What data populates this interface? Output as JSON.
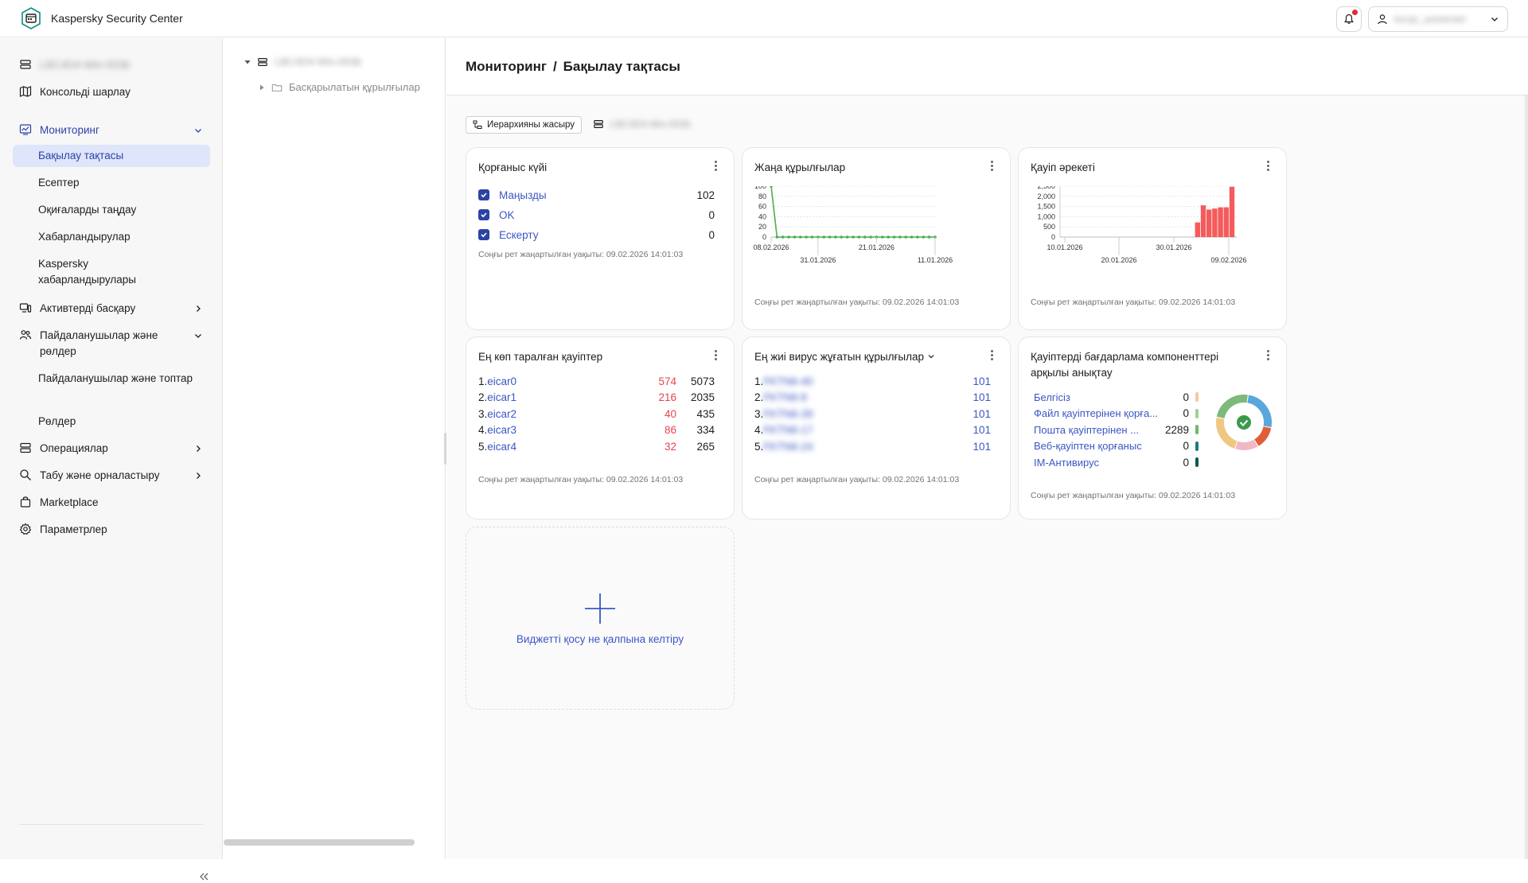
{
  "app": {
    "title": "Kaspersky Security Center"
  },
  "user": {
    "name": "kscqc_autotester"
  },
  "nav": {
    "server": "LBC4D4-Win-003b",
    "console_layout": "Консольді шарлау",
    "monitoring": "Мониторинг",
    "dashboard": "Бақылау тақтасы",
    "reports": "Есептер",
    "event_select": "Оқиғаларды таңдау",
    "notifications": "Хабарландырулар",
    "kaspersky_notifications": "Kaspersky хабарландырулары",
    "assets": "Активтерді басқару",
    "users_roles": "Пайдаланушылар және рөлдер",
    "users_groups": "Пайдаланушылар және топтар",
    "roles": "Рөлдер",
    "operations": "Операциялар",
    "discovery": "Табу және орналастыру",
    "marketplace": "Marketplace",
    "settings": "Параметрлер"
  },
  "tree": {
    "server": "LBC4D4-Win-003b",
    "managed": "Басқарылатын құрылғылар"
  },
  "header": {
    "crumb1": "Мониторинг",
    "sep": "/",
    "crumb2": "Бақылау тақтасы"
  },
  "toolbar": {
    "hide_hierarchy": "Иерархияны жасыру",
    "server": "LBC4D4-Win-003b"
  },
  "widgets": {
    "protection": {
      "title": "Қорғаныс күйі",
      "rows": [
        {
          "label": "Маңызды",
          "value": "102"
        },
        {
          "label": "OK",
          "value": "0"
        },
        {
          "label": "Ескерту",
          "value": "0"
        }
      ],
      "updated": "Соңғы рет жаңартылған уақыты: 09.02.2026 14:01:03"
    },
    "new_devices": {
      "title": "Жаңа құрылғылар",
      "updated": "Соңғы рет жаңартылған уақыты: 09.02.2026 14:01:03"
    },
    "threat_activity": {
      "title": "Қауіп әрекеті",
      "updated": "Соңғы рет жаңартылған уақыты: 09.02.2026 14:01:03"
    },
    "top_threats": {
      "title": "Ең көп таралған қауіптер",
      "rows": [
        {
          "idx": "1.",
          "name": "eicar0",
          "red": "574",
          "total": "5073"
        },
        {
          "idx": "2.",
          "name": "eicar1",
          "red": "216",
          "total": "2035"
        },
        {
          "idx": "3.",
          "name": "eicar2",
          "red": "40",
          "total": "435"
        },
        {
          "idx": "4.",
          "name": "eicar3",
          "red": "86",
          "total": "334"
        },
        {
          "idx": "5.",
          "name": "eicar4",
          "red": "32",
          "total": "265"
        }
      ],
      "updated": "Соңғы рет жаңартылған уақыты: 09.02.2026 14:01:03"
    },
    "top_infected": {
      "title": "Ең жиі вирус жұғатын құрылғылар",
      "rows": [
        {
          "idx": "1.",
          "name": "FKTN6-40",
          "value": "101"
        },
        {
          "idx": "2.",
          "name": "FKTN6-8",
          "value": "101"
        },
        {
          "idx": "3.",
          "name": "FKTN6-39",
          "value": "101"
        },
        {
          "idx": "4.",
          "name": "FKTN6-17",
          "value": "101"
        },
        {
          "idx": "5.",
          "name": "FKTN6-24",
          "value": "101"
        }
      ],
      "updated": "Соңғы рет жаңартылған уақыты: 09.02.2026 14:01:03"
    },
    "components": {
      "title": "Қауіптерді бағдарлама компоненттері арқылы анықтау",
      "rows": [
        {
          "label": "Белгісіз",
          "value": "0",
          "color": "#f0c9a6"
        },
        {
          "label": "Файл қауіптерінен қорға...",
          "value": "0",
          "color": "#9bd48e"
        },
        {
          "label": "Пошта қауіптерінен ...",
          "value": "2289",
          "color": "#6db96b"
        },
        {
          "label": "Веб-қауіптен қорғаныс",
          "value": "0",
          "color": "#1a7f7a"
        },
        {
          "label": "IM-Антивирус",
          "value": "0",
          "color": "#0b5a52"
        }
      ],
      "updated": "Соңғы рет жаңартылған уақыты: 09.02.2026 14:01:03"
    },
    "add": {
      "label": "Виджетті қосу не қалпына келтіру"
    }
  },
  "chart_data": [
    {
      "type": "line",
      "x": [
        "08.02.2026",
        "07.02.2026",
        "06.02.2026",
        "05.02.2026",
        "04.02.2026",
        "03.02.2026",
        "02.02.2026",
        "01.02.2026",
        "31.01.2026",
        "30.01.2026",
        "29.01.2026",
        "28.01.2026",
        "27.01.2026",
        "26.01.2026",
        "25.01.2026",
        "24.01.2026",
        "23.01.2026",
        "22.01.2026",
        "21.01.2026",
        "20.01.2026",
        "19.01.2026",
        "18.01.2026",
        "17.01.2026",
        "16.01.2026",
        "15.01.2026",
        "14.01.2026",
        "13.01.2026",
        "12.01.2026",
        "11.01.2026"
      ],
      "values": [
        100,
        0,
        0,
        0,
        0,
        0,
        0,
        0,
        0,
        0,
        0,
        0,
        0,
        0,
        0,
        0,
        0,
        0,
        0,
        0,
        0,
        0,
        0,
        0,
        0,
        0,
        0,
        0,
        0
      ],
      "ylim": [
        0,
        100
      ],
      "yticks": [
        "100",
        "80",
        "60",
        "40",
        "20",
        "0"
      ],
      "xticks": [
        "08.02.2026",
        "31.01.2026",
        "21.01.2026",
        "11.01.2026"
      ],
      "color": "#4caf50"
    },
    {
      "type": "bar",
      "categories": [
        "02.02.2026",
        "03.02.2026",
        "04.02.2026",
        "05.02.2026",
        "06.02.2026",
        "07.02.2026",
        "08.02.2026"
      ],
      "values": [
        720,
        1560,
        1350,
        1400,
        1460,
        1460,
        2470
      ],
      "ylim": [
        0,
        2500
      ],
      "yticks": [
        "2,500",
        "2,000",
        "1,500",
        "1,000",
        "500",
        "0"
      ],
      "xticks": [
        "10.01.2026",
        "20.01.2026",
        "30.01.2026",
        "09.02.2026"
      ],
      "color": "#f45b5b"
    },
    {
      "type": "pie",
      "categories": [
        "Белгісіз",
        "Файл қауіптерінен қорғаныс",
        "Пошта қауіптерінен қорғаныс",
        "Веб-қауіптен қорғаныс",
        "IM-Антивирус"
      ],
      "values": [
        0,
        0,
        2289,
        0,
        0
      ]
    }
  ]
}
